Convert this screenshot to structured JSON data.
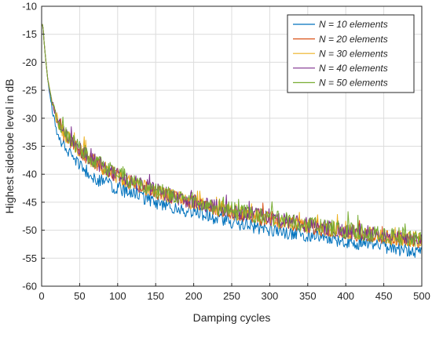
{
  "chart_data": {
    "type": "line",
    "title": "",
    "xlabel": "Damping cycles",
    "ylabel": "Highest sidelobe level in dB",
    "xlim": [
      0,
      500
    ],
    "ylim": [
      -60,
      -10
    ],
    "xticks": [
      0,
      50,
      100,
      150,
      200,
      250,
      300,
      350,
      400,
      450,
      500
    ],
    "yticks": [
      -60,
      -55,
      -50,
      -45,
      -40,
      -35,
      -30,
      -25,
      -20,
      -15,
      -10
    ],
    "grid": true,
    "legend_position": "top-right",
    "series": [
      {
        "name": "N = 10 elements",
        "color": "#0072BD",
        "x": [
          1,
          2,
          3,
          5,
          8,
          12,
          16,
          20,
          25,
          30,
          40,
          50,
          60,
          75,
          100,
          125,
          150,
          175,
          200,
          250,
          300,
          350,
          400,
          450,
          500
        ],
        "y": [
          -13.2,
          -14,
          -16,
          -19,
          -23,
          -27,
          -30,
          -32.5,
          -33.8,
          -34.8,
          -36.5,
          -38.5,
          -39.5,
          -41,
          -42.5,
          -43.8,
          -45,
          -46,
          -46.8,
          -48.5,
          -50,
          -51,
          -52,
          -53,
          -54
        ],
        "noise": 1.2
      },
      {
        "name": "N = 20 elements",
        "color": "#D95319",
        "x": [
          1,
          2,
          3,
          5,
          8,
          12,
          16,
          20,
          25,
          30,
          40,
          50,
          60,
          75,
          100,
          125,
          150,
          175,
          200,
          250,
          300,
          350,
          400,
          450,
          500
        ],
        "y": [
          -13.2,
          -14,
          -16,
          -19,
          -23,
          -26,
          -28.5,
          -30.5,
          -32,
          -33,
          -34.5,
          -36,
          -37,
          -38.5,
          -40.5,
          -42,
          -43.2,
          -44.3,
          -45.2,
          -46.8,
          -48.2,
          -49.4,
          -50.4,
          -51.3,
          -52
        ],
        "noise": 1.3
      },
      {
        "name": "N = 30 elements",
        "color": "#EDB120",
        "x": [
          1,
          2,
          3,
          5,
          8,
          12,
          16,
          20,
          25,
          30,
          40,
          50,
          60,
          75,
          100,
          125,
          150,
          175,
          200,
          250,
          300,
          350,
          400,
          450,
          500
        ],
        "y": [
          -13.2,
          -14,
          -16,
          -19,
          -23,
          -26,
          -28.3,
          -30.2,
          -31.8,
          -32.8,
          -34.3,
          -35.8,
          -36.8,
          -38.3,
          -40.3,
          -41.8,
          -43,
          -44.1,
          -45,
          -46.6,
          -48,
          -49.2,
          -50.2,
          -51.1,
          -51.8
        ],
        "noise": 1.4
      },
      {
        "name": "N = 40 elements",
        "color": "#7E2F8E",
        "x": [
          1,
          2,
          3,
          5,
          8,
          12,
          16,
          20,
          25,
          30,
          40,
          50,
          60,
          75,
          100,
          125,
          150,
          175,
          200,
          250,
          300,
          350,
          400,
          450,
          500
        ],
        "y": [
          -13.2,
          -14,
          -16,
          -19,
          -23,
          -26,
          -28.3,
          -30.2,
          -31.7,
          -32.7,
          -34.2,
          -35.7,
          -36.7,
          -38.2,
          -40.2,
          -41.7,
          -42.9,
          -44,
          -44.9,
          -46.5,
          -47.9,
          -49.1,
          -50.1,
          -51,
          -51.7
        ],
        "noise": 1.4
      },
      {
        "name": "N = 50 elements",
        "color": "#77AC30",
        "x": [
          1,
          2,
          3,
          5,
          8,
          12,
          16,
          20,
          25,
          30,
          40,
          50,
          60,
          75,
          100,
          125,
          150,
          175,
          200,
          250,
          300,
          350,
          400,
          450,
          500
        ],
        "y": [
          -13.2,
          -14,
          -16,
          -19,
          -23,
          -26,
          -28.2,
          -30.1,
          -31.6,
          -32.6,
          -34.1,
          -35.6,
          -36.6,
          -38.1,
          -40.1,
          -41.6,
          -42.8,
          -43.9,
          -44.8,
          -46.4,
          -47.8,
          -49,
          -50,
          -50.9,
          -51.6
        ],
        "noise": 1.5
      }
    ]
  }
}
